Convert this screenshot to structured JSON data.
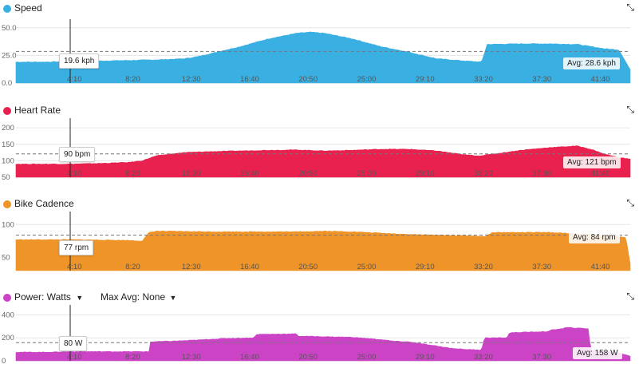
{
  "x_ticks": [
    "4:10",
    "8:20",
    "12:30",
    "16:40",
    "20:50",
    "25:00",
    "29:10",
    "33:20",
    "37:30",
    "41:40"
  ],
  "charts": [
    {
      "key": "speed",
      "title": "Speed",
      "color": "#3ab0e2",
      "y_ticks": [
        "50.0",
        "25.0",
        "0.0"
      ],
      "y_tick_values": [
        50,
        25,
        0
      ],
      "ylim": [
        0,
        52
      ],
      "avg_value": 28.6,
      "avg_label": "Avg: 28.6 kph",
      "cursor_label": "19.6 kph",
      "profile_minutes": [
        0,
        2,
        4,
        6,
        8,
        10,
        12,
        13,
        14,
        16,
        18,
        20,
        21,
        22,
        24,
        26,
        28,
        30,
        32,
        33.2,
        33.6,
        36,
        38,
        40,
        41,
        42,
        43,
        43.8
      ],
      "profile_values": [
        19,
        19,
        19.5,
        20,
        20.5,
        21,
        22,
        24,
        27,
        33,
        40,
        45,
        46,
        45,
        40,
        33,
        28,
        22,
        20,
        19,
        35,
        35.5,
        35.5,
        35,
        33,
        31,
        30,
        12
      ]
    },
    {
      "key": "heart_rate",
      "title": "Heart Rate",
      "color": "#e8214f",
      "y_ticks": [
        "200",
        "150",
        "100",
        "50"
      ],
      "y_tick_values": [
        200,
        150,
        100,
        50
      ],
      "ylim": [
        50,
        210
      ],
      "avg_value": 121,
      "avg_label": "Avg: 121 bpm",
      "cursor_label": "90 bpm",
      "profile_minutes": [
        0,
        2,
        4,
        6,
        8,
        9,
        10,
        12,
        14,
        16,
        18,
        20,
        22,
        24,
        26,
        28,
        30,
        32,
        33,
        34,
        36,
        38,
        40,
        41,
        42,
        43,
        43.8
      ],
      "profile_values": [
        90,
        90,
        90,
        92,
        95,
        100,
        115,
        125,
        128,
        130,
        132,
        133,
        130,
        132,
        135,
        135,
        130,
        118,
        115,
        120,
        132,
        140,
        145,
        135,
        120,
        110,
        105
      ]
    },
    {
      "key": "cadence",
      "title": "Bike Cadence",
      "color": "#ee9428",
      "y_ticks": [
        "100",
        "50"
      ],
      "y_tick_values": [
        100,
        50
      ],
      "ylim": [
        30,
        110
      ],
      "avg_value": 84,
      "avg_label": "Avg: 84 rpm",
      "cursor_label": "77 rpm",
      "profile_minutes": [
        0,
        4,
        8,
        9,
        9.5,
        10,
        14,
        18,
        20,
        22,
        24,
        28,
        30,
        32,
        33.5,
        34,
        38,
        40,
        42,
        43.5,
        43.8
      ],
      "profile_values": [
        77,
        77,
        76,
        75,
        88,
        90,
        89,
        89,
        89,
        90,
        89,
        85,
        84,
        83,
        82,
        88,
        88,
        86,
        84,
        80,
        40
      ]
    },
    {
      "key": "power",
      "title": "Power: Watts",
      "title_has_dropdown": true,
      "secondary_label": "Max Avg: None",
      "color": "#cc44c6",
      "y_ticks": [
        "400",
        "200",
        "0"
      ],
      "y_tick_values": [
        400,
        200,
        0
      ],
      "ylim": [
        0,
        430
      ],
      "avg_value": 158,
      "avg_label": "Avg: 158 W",
      "cursor_label": "80 W",
      "profile_minutes": [
        0,
        2,
        4,
        6,
        8,
        9.5,
        9.6,
        12,
        15,
        17,
        17.1,
        20,
        20.1,
        24,
        26,
        27,
        28,
        31,
        32,
        33.2,
        33.4,
        35,
        35.2,
        38,
        38.2,
        39,
        39.2,
        40.8,
        41,
        42,
        43,
        43.8
      ],
      "profile_values": [
        75,
        75,
        80,
        80,
        80,
        80,
        165,
        175,
        195,
        200,
        230,
        235,
        215,
        205,
        185,
        170,
        165,
        110,
        100,
        95,
        200,
        200,
        245,
        255,
        270,
        280,
        290,
        280,
        90,
        85,
        70,
        40
      ]
    }
  ]
}
